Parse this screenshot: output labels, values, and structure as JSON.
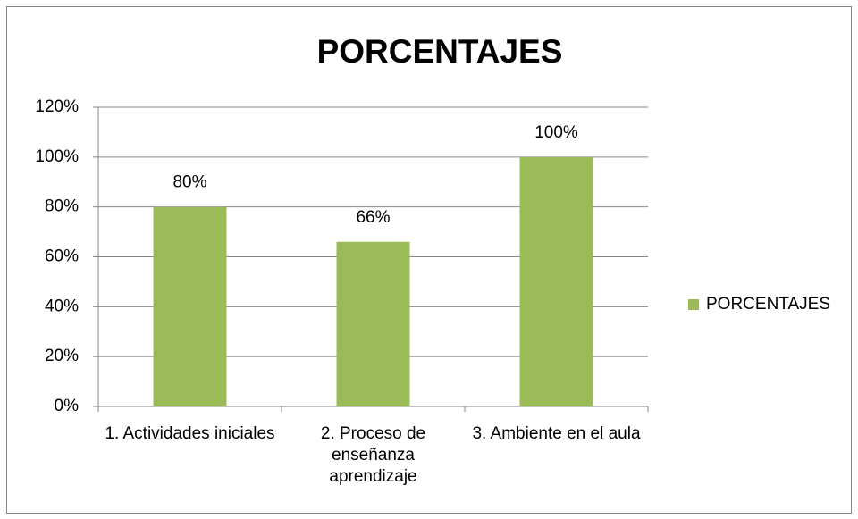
{
  "chart_data": {
    "type": "bar",
    "title": "PORCENTAJES",
    "categories": [
      "1.  Actividades iniciales",
      "2.  Proceso de enseñanza aprendizaje",
      "3.  Ambiente en el aula"
    ],
    "series": [
      {
        "name": "PORCENTAJES",
        "color": "#9bbb59",
        "values": [
          80,
          66,
          100
        ],
        "value_labels": [
          "80%",
          "66%",
          "100%"
        ]
      }
    ],
    "ylim": [
      0,
      120
    ],
    "yticks": [
      {
        "value": 0,
        "label": "0%"
      },
      {
        "value": 20,
        "label": "20%"
      },
      {
        "value": 40,
        "label": "40%"
      },
      {
        "value": 60,
        "label": "60%"
      },
      {
        "value": 80,
        "label": "80%"
      },
      {
        "value": 100,
        "label": "100%"
      },
      {
        "value": 120,
        "label": "120%"
      }
    ],
    "grid": true,
    "legend": "right"
  }
}
